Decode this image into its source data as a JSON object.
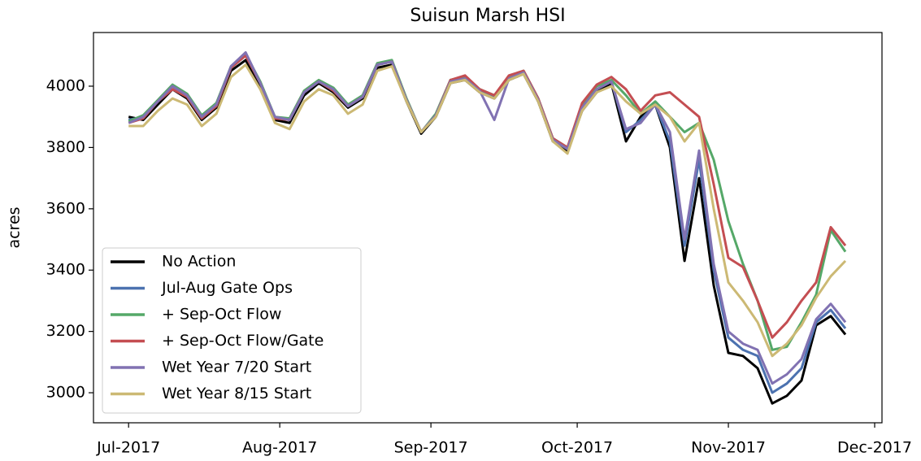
{
  "chart_data": {
    "type": "line",
    "title": "Suisun Marsh HSI",
    "ylabel": "acres",
    "x": [
      0,
      3,
      6,
      9,
      12,
      15,
      18,
      21,
      24,
      27,
      30,
      33,
      36,
      39,
      42,
      45,
      48,
      51,
      54,
      57,
      60,
      63,
      66,
      69,
      72,
      75,
      78,
      81,
      84,
      87,
      90,
      93,
      96,
      99,
      102,
      105,
      108,
      111,
      114,
      117,
      120,
      123,
      126,
      129,
      132,
      135,
      138,
      141,
      144,
      147
    ],
    "xlim": [
      -7.2,
      154.5
    ],
    "xticks": [
      {
        "value": 0,
        "label": "Jul-2017"
      },
      {
        "value": 31,
        "label": "Aug-2017"
      },
      {
        "value": 62,
        "label": "Sep-2017"
      },
      {
        "value": 92,
        "label": "Oct-2017"
      },
      {
        "value": 123,
        "label": "Nov-2017"
      },
      {
        "value": 153,
        "label": "Dec-2017"
      }
    ],
    "ylim": [
      2902,
      4175
    ],
    "yticks": [
      3000,
      3200,
      3400,
      3600,
      3800,
      4000
    ],
    "grid": false,
    "legend": "lower left",
    "series": [
      {
        "name": "No Action",
        "color": "#000000",
        "values": [
          3900,
          3890,
          3940,
          3990,
          3960,
          3890,
          3930,
          4050,
          4085,
          4000,
          3890,
          3880,
          3970,
          4010,
          3980,
          3930,
          3960,
          4060,
          4070,
          3950,
          3845,
          3900,
          4010,
          4020,
          3980,
          3960,
          4020,
          4040,
          3950,
          3820,
          3790,
          3920,
          3980,
          4010,
          3820,
          3900,
          3940,
          3800,
          3430,
          3700,
          3350,
          3130,
          3120,
          3080,
          2965,
          2990,
          3040,
          3220,
          3250,
          3190
        ]
      },
      {
        "name": "Jul-Aug Gate Ops",
        "color": "#4c72b0",
        "values": [
          3890,
          3900,
          3950,
          4000,
          3970,
          3900,
          3940,
          4060,
          4100,
          4010,
          3900,
          3890,
          3980,
          4015,
          3990,
          3935,
          3965,
          4070,
          4080,
          3955,
          3850,
          3905,
          4015,
          4025,
          3985,
          3965,
          4025,
          4045,
          3955,
          3825,
          3795,
          3930,
          3990,
          4015,
          3850,
          3890,
          3940,
          3820,
          3480,
          3760,
          3400,
          3180,
          3140,
          3120,
          3000,
          3030,
          3080,
          3230,
          3270,
          3210
        ]
      },
      {
        "name": "+ Sep-Oct Flow",
        "color": "#55a868",
        "values": [
          3885,
          3905,
          3955,
          4005,
          3975,
          3905,
          3945,
          4065,
          4105,
          4015,
          3900,
          3895,
          3985,
          4020,
          3995,
          3940,
          3970,
          4075,
          4085,
          3960,
          3850,
          3910,
          4020,
          4030,
          3990,
          3970,
          4030,
          4050,
          3960,
          3830,
          3800,
          3940,
          4000,
          4020,
          3970,
          3910,
          3950,
          3900,
          3850,
          3880,
          3760,
          3560,
          3420,
          3300,
          3140,
          3150,
          3230,
          3320,
          3530,
          3460
        ]
      },
      {
        "name": "+ Sep-Oct Flow/Gate",
        "color": "#c44e52",
        "values": [
          3880,
          3895,
          3950,
          3990,
          3965,
          3895,
          3935,
          4060,
          4100,
          4010,
          3895,
          3890,
          3980,
          4015,
          3985,
          3935,
          3965,
          4070,
          4080,
          3955,
          3850,
          3905,
          4020,
          4035,
          3990,
          3970,
          4035,
          4050,
          3960,
          3830,
          3800,
          3945,
          4005,
          4030,
          3990,
          3920,
          3970,
          3980,
          3940,
          3900,
          3680,
          3440,
          3410,
          3300,
          3180,
          3230,
          3300,
          3360,
          3540,
          3480
        ]
      },
      {
        "name": "Wet Year 7/20 Start",
        "color": "#8172b2",
        "values": [
          3880,
          3900,
          3950,
          4000,
          3970,
          3900,
          3940,
          4065,
          4110,
          4010,
          3900,
          3890,
          3980,
          4015,
          3990,
          3935,
          3965,
          4070,
          4080,
          3955,
          3850,
          3905,
          4015,
          4025,
          3985,
          3890,
          4025,
          4045,
          3955,
          3825,
          3795,
          3930,
          3990,
          4015,
          3860,
          3880,
          3940,
          3850,
          3500,
          3790,
          3420,
          3200,
          3160,
          3140,
          3030,
          3060,
          3110,
          3240,
          3290,
          3230
        ]
      },
      {
        "name": "Wet Year 8/15 Start",
        "color": "#ccb974",
        "values": [
          3870,
          3870,
          3920,
          3960,
          3940,
          3870,
          3910,
          4030,
          4070,
          3990,
          3880,
          3860,
          3950,
          3990,
          3970,
          3910,
          3940,
          4050,
          4065,
          3950,
          3850,
          3900,
          4010,
          4020,
          3980,
          3960,
          4020,
          4040,
          3950,
          3820,
          3780,
          3920,
          3980,
          4000,
          3950,
          3910,
          3940,
          3900,
          3820,
          3880,
          3600,
          3360,
          3300,
          3230,
          3120,
          3160,
          3220,
          3310,
          3380,
          3430
        ]
      }
    ]
  }
}
